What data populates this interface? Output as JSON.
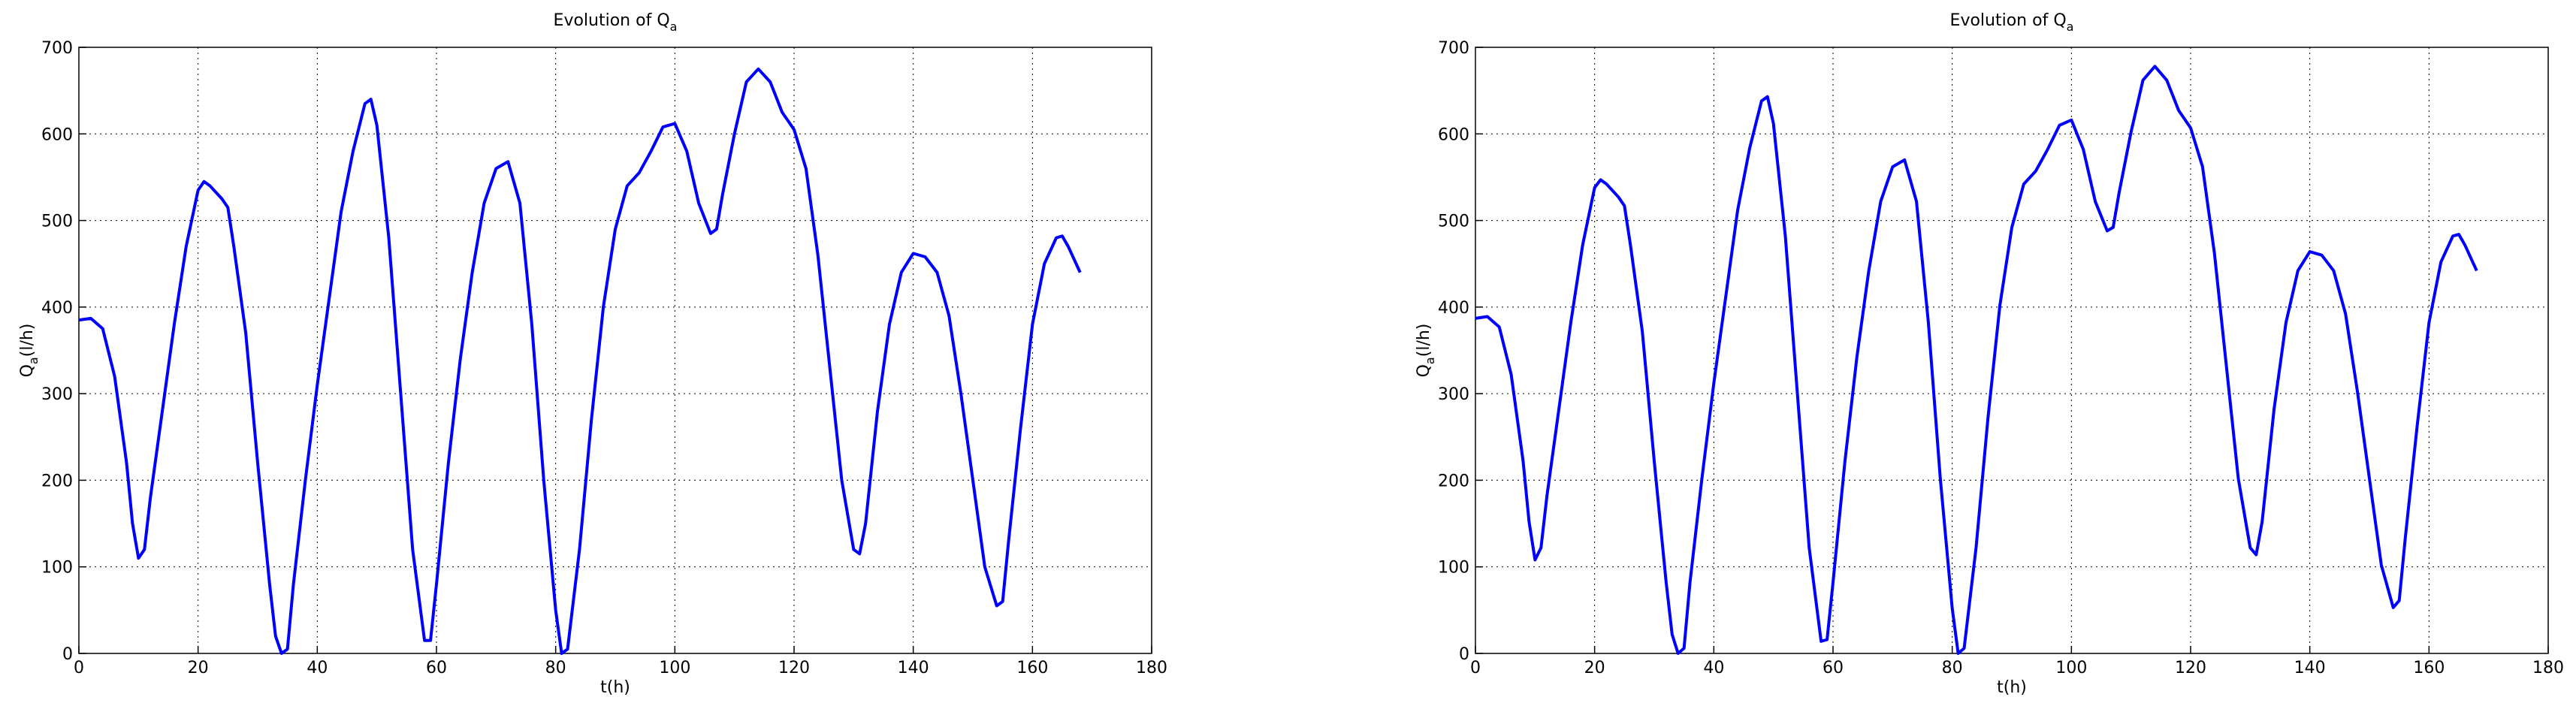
{
  "chart_data": [
    {
      "type": "line",
      "title": "Evolution of Q",
      "title_subscript": "a",
      "xlabel": "t(h)",
      "ylabel": "Q",
      "ylabel_subscript": "a",
      "ylabel_suffix": "(l/h)",
      "xlim": [
        0,
        180
      ],
      "xticks": [
        0,
        20,
        40,
        60,
        80,
        100,
        120,
        140,
        160,
        180
      ],
      "ylim": [
        0,
        700
      ],
      "yticks": [
        0,
        100,
        200,
        300,
        400,
        500,
        600,
        700
      ],
      "grid": true,
      "x": [
        0,
        2,
        4,
        6,
        8,
        9,
        10,
        11,
        12,
        14,
        16,
        18,
        20,
        21,
        22,
        24,
        25,
        26,
        28,
        30,
        32,
        33,
        34,
        35,
        36,
        38,
        40,
        42,
        44,
        46,
        48,
        49,
        50,
        52,
        54,
        56,
        58,
        59,
        60,
        62,
        64,
        66,
        68,
        70,
        72,
        74,
        76,
        78,
        80,
        81,
        82,
        84,
        86,
        88,
        90,
        92,
        94,
        96,
        98,
        100,
        102,
        104,
        106,
        107,
        108,
        110,
        112,
        114,
        116,
        118,
        120,
        122,
        124,
        126,
        128,
        130,
        131,
        132,
        134,
        136,
        138,
        140,
        142,
        144,
        146,
        148,
        150,
        152,
        154,
        155,
        156,
        158,
        160,
        162,
        164,
        165,
        166,
        168
      ],
      "series": [
        {
          "color": "#0000ff",
          "values": [
            385,
            387,
            375,
            320,
            220,
            150,
            110,
            120,
            180,
            280,
            380,
            470,
            535,
            545,
            540,
            525,
            515,
            470,
            370,
            220,
            80,
            20,
            0,
            5,
            80,
            200,
            310,
            410,
            510,
            580,
            635,
            640,
            610,
            480,
            300,
            120,
            15,
            15,
            80,
            220,
            340,
            440,
            520,
            560,
            568,
            520,
            380,
            200,
            50,
            0,
            5,
            120,
            270,
            400,
            490,
            540,
            555,
            580,
            608,
            612,
            580,
            520,
            485,
            490,
            530,
            600,
            660,
            675,
            660,
            625,
            605,
            560,
            460,
            330,
            200,
            120,
            115,
            150,
            280,
            380,
            440,
            462,
            458,
            440,
            390,
            300,
            200,
            100,
            55,
            60,
            130,
            260,
            380,
            450,
            480,
            482,
            470,
            440
          ]
        }
      ]
    },
    {
      "type": "line",
      "title": "Evolution of Q",
      "title_subscript": "a",
      "xlabel": "t(h)",
      "ylabel": "Q",
      "ylabel_subscript": "a",
      "ylabel_suffix": "(l/h)",
      "xlim": [
        0,
        180
      ],
      "xticks": [
        0,
        20,
        40,
        60,
        80,
        100,
        120,
        140,
        160,
        180
      ],
      "ylim": [
        0,
        700
      ],
      "yticks": [
        0,
        100,
        200,
        300,
        400,
        500,
        600,
        700
      ],
      "grid": true,
      "x": [
        0,
        2,
        4,
        6,
        8,
        9,
        10,
        11,
        12,
        14,
        16,
        18,
        20,
        21,
        22,
        24,
        25,
        26,
        28,
        30,
        32,
        33,
        34,
        35,
        36,
        38,
        40,
        42,
        44,
        46,
        48,
        49,
        50,
        52,
        54,
        56,
        58,
        59,
        60,
        62,
        64,
        66,
        68,
        70,
        72,
        74,
        76,
        78,
        80,
        81,
        82,
        84,
        86,
        88,
        90,
        92,
        94,
        96,
        98,
        100,
        102,
        104,
        106,
        107,
        108,
        110,
        112,
        114,
        116,
        118,
        120,
        122,
        124,
        126,
        128,
        130,
        131,
        132,
        134,
        136,
        138,
        140,
        142,
        144,
        146,
        148,
        150,
        152,
        154,
        155,
        156,
        158,
        160,
        162,
        164,
        165,
        166,
        168
      ],
      "series": [
        {
          "color": "#0000ff",
          "values": [
            387,
            389,
            377,
            322,
            222,
            152,
            108,
            122,
            182,
            282,
            382,
            472,
            538,
            547,
            542,
            527,
            517,
            472,
            372,
            222,
            82,
            22,
            0,
            6,
            82,
            202,
            312,
            412,
            512,
            583,
            638,
            643,
            612,
            482,
            302,
            122,
            14,
            16,
            82,
            222,
            342,
            442,
            522,
            562,
            570,
            522,
            382,
            202,
            52,
            0,
            6,
            122,
            272,
            402,
            492,
            542,
            557,
            582,
            610,
            616,
            582,
            522,
            488,
            492,
            532,
            602,
            662,
            678,
            662,
            627,
            607,
            562,
            462,
            332,
            202,
            122,
            114,
            152,
            282,
            382,
            442,
            464,
            460,
            442,
            392,
            302,
            202,
            102,
            53,
            61,
            132,
            262,
            382,
            452,
            482,
            484,
            472,
            442
          ]
        }
      ]
    }
  ]
}
